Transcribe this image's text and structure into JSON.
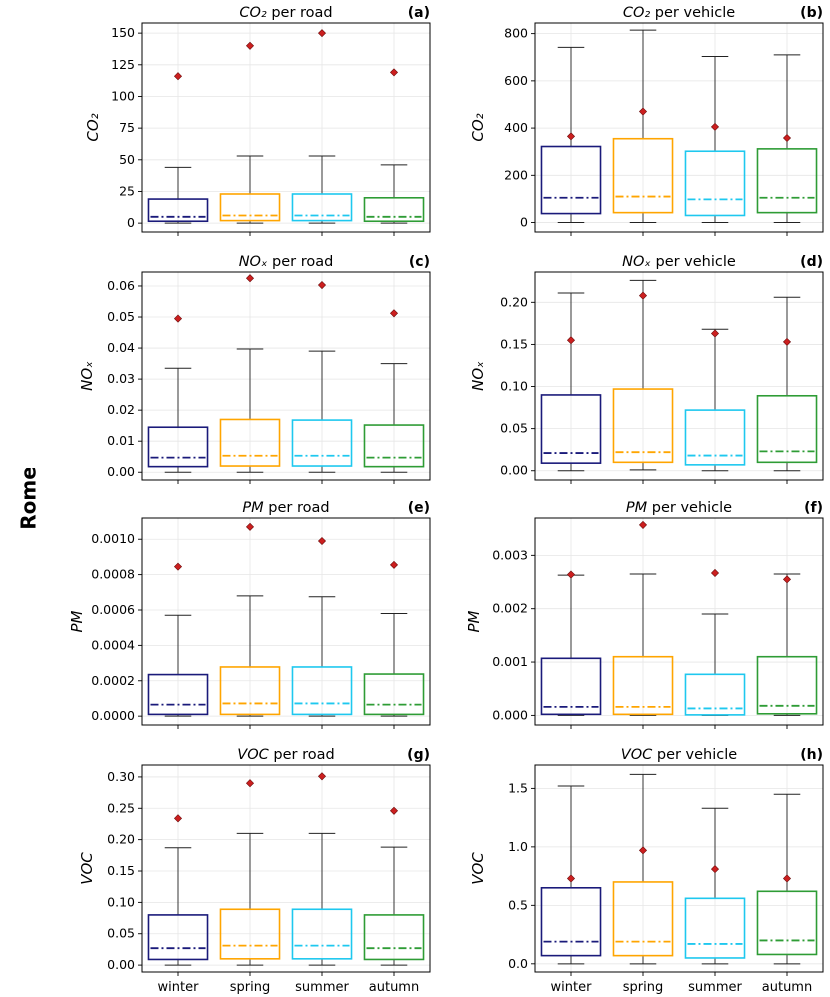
{
  "figure": {
    "city": "Rome",
    "categories": [
      "winter",
      "spring",
      "summer",
      "autumn"
    ],
    "colors": {
      "winter": "#1a1a7a",
      "spring": "#ffa500",
      "summer": "#1ec8ef",
      "autumn": "#2e9c35",
      "mean_marker": "#cc1f1f",
      "whisker": "#222222",
      "grid": "#e6e6e6"
    }
  },
  "chart_data": [
    {
      "id": "a",
      "label": "(a)",
      "type": "box",
      "title": "CO₂ per road",
      "title_italic": "CO₂",
      "title_rest": " per road",
      "ylabel": "CO₂",
      "ylim": [
        -7,
        158
      ],
      "yticks": [
        0,
        25,
        50,
        75,
        100,
        125,
        150
      ],
      "ytick_labels": [
        "0",
        "25",
        "50",
        "75",
        "100",
        "125",
        "150"
      ],
      "categories": [
        "winter",
        "spring",
        "summer",
        "autumn"
      ],
      "series": [
        {
          "name": "winter",
          "whislo": 0,
          "q1": 1.5,
          "median": 5,
          "q3": 19,
          "whishi": 44,
          "mean": 116
        },
        {
          "name": "spring",
          "whislo": 0,
          "q1": 2,
          "median": 6,
          "q3": 23,
          "whishi": 53,
          "mean": 140
        },
        {
          "name": "summer",
          "whislo": 0,
          "q1": 2,
          "median": 6,
          "q3": 23,
          "whishi": 53,
          "mean": 150
        },
        {
          "name": "autumn",
          "whislo": 0,
          "q1": 1.5,
          "median": 5,
          "q3": 20,
          "whishi": 46,
          "mean": 119
        }
      ]
    },
    {
      "id": "b",
      "label": "(b)",
      "type": "box",
      "title": "CO₂ per vehicle",
      "title_italic": "CO₂",
      "title_rest": " per vehicle",
      "ylabel": "CO₂",
      "ylim": [
        -40,
        845
      ],
      "yticks": [
        0,
        200,
        400,
        600,
        800
      ],
      "ytick_labels": [
        "0",
        "200",
        "400",
        "600",
        "800"
      ],
      "categories": [
        "winter",
        "spring",
        "summer",
        "autumn"
      ],
      "series": [
        {
          "name": "winter",
          "whislo": 0,
          "q1": 38,
          "median": 105,
          "q3": 322,
          "whishi": 742,
          "mean": 365
        },
        {
          "name": "spring",
          "whislo": 0,
          "q1": 42,
          "median": 110,
          "q3": 355,
          "whishi": 815,
          "mean": 470
        },
        {
          "name": "summer",
          "whislo": 0,
          "q1": 30,
          "median": 98,
          "q3": 302,
          "whishi": 703,
          "mean": 405
        },
        {
          "name": "autumn",
          "whislo": 0,
          "q1": 42,
          "median": 105,
          "q3": 312,
          "whishi": 710,
          "mean": 358
        }
      ]
    },
    {
      "id": "c",
      "label": "(c)",
      "type": "box",
      "title": "NOx per road",
      "title_italic": "NOₓ",
      "title_rest": " per road",
      "ylabel": "NOₓ",
      "ylim": [
        -0.0025,
        0.0645
      ],
      "yticks": [
        0,
        0.01,
        0.02,
        0.03,
        0.04,
        0.05,
        0.06
      ],
      "ytick_labels": [
        "0.00",
        "0.01",
        "0.02",
        "0.03",
        "0.04",
        "0.05",
        "0.06"
      ],
      "categories": [
        "winter",
        "spring",
        "summer",
        "autumn"
      ],
      "series": [
        {
          "name": "winter",
          "whislo": 0,
          "q1": 0.0018,
          "median": 0.0047,
          "q3": 0.0145,
          "whishi": 0.0335,
          "mean": 0.0495
        },
        {
          "name": "spring",
          "whislo": 0,
          "q1": 0.002,
          "median": 0.0053,
          "q3": 0.017,
          "whishi": 0.0397,
          "mean": 0.0625
        },
        {
          "name": "summer",
          "whislo": 0,
          "q1": 0.002,
          "median": 0.0053,
          "q3": 0.0168,
          "whishi": 0.039,
          "mean": 0.0603
        },
        {
          "name": "autumn",
          "whislo": 0,
          "q1": 0.0018,
          "median": 0.0047,
          "q3": 0.0152,
          "whishi": 0.035,
          "mean": 0.0512
        }
      ]
    },
    {
      "id": "d",
      "label": "(d)",
      "type": "box",
      "title": "NOx per vehicle",
      "title_italic": "NOₓ",
      "title_rest": " per vehicle",
      "ylabel": "NOₓ",
      "ylim": [
        -0.011,
        0.236
      ],
      "yticks": [
        0,
        0.05,
        0.1,
        0.15,
        0.2
      ],
      "ytick_labels": [
        "0.00",
        "0.05",
        "0.10",
        "0.15",
        "0.20"
      ],
      "categories": [
        "winter",
        "spring",
        "summer",
        "autumn"
      ],
      "series": [
        {
          "name": "winter",
          "whislo": 0,
          "q1": 0.009,
          "median": 0.021,
          "q3": 0.09,
          "whishi": 0.211,
          "mean": 0.155
        },
        {
          "name": "spring",
          "whislo": 0.001,
          "q1": 0.01,
          "median": 0.022,
          "q3": 0.097,
          "whishi": 0.226,
          "mean": 0.208
        },
        {
          "name": "summer",
          "whislo": 0,
          "q1": 0.007,
          "median": 0.018,
          "q3": 0.072,
          "whishi": 0.168,
          "mean": 0.163
        },
        {
          "name": "autumn",
          "whislo": 0,
          "q1": 0.01,
          "median": 0.023,
          "q3": 0.089,
          "whishi": 0.206,
          "mean": 0.153
        }
      ]
    },
    {
      "id": "e",
      "label": "(e)",
      "type": "box",
      "title": "PM per road",
      "title_italic": "PM",
      "title_rest": " per road",
      "ylabel": "PM",
      "ylim": [
        -5e-05,
        0.00112
      ],
      "yticks": [
        0,
        0.0002,
        0.0004,
        0.0006,
        0.0008,
        0.001
      ],
      "ytick_labels": [
        "0.0000",
        "0.0002",
        "0.0004",
        "0.0006",
        "0.0008",
        "0.0010"
      ],
      "categories": [
        "winter",
        "spring",
        "summer",
        "autumn"
      ],
      "series": [
        {
          "name": "winter",
          "whislo": 0,
          "q1": 1e-05,
          "median": 6.5e-05,
          "q3": 0.000235,
          "whishi": 0.00057,
          "mean": 0.000845
        },
        {
          "name": "spring",
          "whislo": 0,
          "q1": 1e-05,
          "median": 7.2e-05,
          "q3": 0.000278,
          "whishi": 0.00068,
          "mean": 0.00107
        },
        {
          "name": "summer",
          "whislo": 0,
          "q1": 1e-05,
          "median": 7.2e-05,
          "q3": 0.000278,
          "whishi": 0.000675,
          "mean": 0.00099
        },
        {
          "name": "autumn",
          "whislo": 0,
          "q1": 1e-05,
          "median": 6.5e-05,
          "q3": 0.000238,
          "whishi": 0.00058,
          "mean": 0.000855
        }
      ]
    },
    {
      "id": "f",
      "label": "(f)",
      "type": "box",
      "title": "PM per vehicle",
      "title_italic": "PM",
      "title_rest": " per vehicle",
      "ylabel": "PM",
      "ylim": [
        -0.00018,
        0.0037
      ],
      "yticks": [
        0,
        0.001,
        0.002,
        0.003
      ],
      "ytick_labels": [
        "0.000",
        "0.001",
        "0.002",
        "0.003"
      ],
      "categories": [
        "winter",
        "spring",
        "summer",
        "autumn"
      ],
      "series": [
        {
          "name": "winter",
          "whislo": 0,
          "q1": 2e-05,
          "median": 0.00016,
          "q3": 0.00107,
          "whishi": 0.00263,
          "mean": 0.00264
        },
        {
          "name": "spring",
          "whislo": 0,
          "q1": 2e-05,
          "median": 0.00016,
          "q3": 0.0011,
          "whishi": 0.00265,
          "mean": 0.00357
        },
        {
          "name": "summer",
          "whislo": 0,
          "q1": 1e-05,
          "median": 0.00013,
          "q3": 0.00077,
          "whishi": 0.0019,
          "mean": 0.00267
        },
        {
          "name": "autumn",
          "whislo": 0,
          "q1": 3e-05,
          "median": 0.00018,
          "q3": 0.0011,
          "whishi": 0.00265,
          "mean": 0.00255
        }
      ]
    },
    {
      "id": "g",
      "label": "(g)",
      "type": "box",
      "title": "VOC per road",
      "title_italic": "VOC",
      "title_rest": " per road",
      "ylabel": "VOC",
      "ylim": [
        -0.011,
        0.319
      ],
      "yticks": [
        0,
        0.05,
        0.1,
        0.15,
        0.2,
        0.25,
        0.3
      ],
      "ytick_labels": [
        "0.00",
        "0.05",
        "0.10",
        "0.15",
        "0.20",
        "0.25",
        "0.30"
      ],
      "categories": [
        "winter",
        "spring",
        "summer",
        "autumn"
      ],
      "series": [
        {
          "name": "winter",
          "whislo": 0,
          "q1": 0.009,
          "median": 0.027,
          "q3": 0.08,
          "whishi": 0.187,
          "mean": 0.234
        },
        {
          "name": "spring",
          "whislo": 0,
          "q1": 0.01,
          "median": 0.031,
          "q3": 0.089,
          "whishi": 0.21,
          "mean": 0.29
        },
        {
          "name": "summer",
          "whislo": 0,
          "q1": 0.01,
          "median": 0.031,
          "q3": 0.089,
          "whishi": 0.21,
          "mean": 0.301
        },
        {
          "name": "autumn",
          "whislo": 0,
          "q1": 0.009,
          "median": 0.027,
          "q3": 0.08,
          "whishi": 0.188,
          "mean": 0.246
        }
      ]
    },
    {
      "id": "h",
      "label": "(h)",
      "type": "box",
      "title": "VOC per vehicle",
      "title_italic": "VOC",
      "title_rest": " per vehicle",
      "ylabel": "VOC",
      "ylim": [
        -0.07,
        1.7
      ],
      "yticks": [
        0,
        0.5,
        1,
        1.5
      ],
      "ytick_labels": [
        "0.0",
        "0.5",
        "1.0",
        "1.5"
      ],
      "categories": [
        "winter",
        "spring",
        "summer",
        "autumn"
      ],
      "series": [
        {
          "name": "winter",
          "whislo": 0,
          "q1": 0.07,
          "median": 0.19,
          "q3": 0.65,
          "whishi": 1.52,
          "mean": 0.73
        },
        {
          "name": "spring",
          "whislo": 0,
          "q1": 0.07,
          "median": 0.19,
          "q3": 0.7,
          "whishi": 1.62,
          "mean": 0.97
        },
        {
          "name": "summer",
          "whislo": 0,
          "q1": 0.05,
          "median": 0.17,
          "q3": 0.56,
          "whishi": 1.33,
          "mean": 0.81
        },
        {
          "name": "autumn",
          "whislo": 0,
          "q1": 0.08,
          "median": 0.2,
          "q3": 0.62,
          "whishi": 1.45,
          "mean": 0.73
        }
      ]
    }
  ]
}
